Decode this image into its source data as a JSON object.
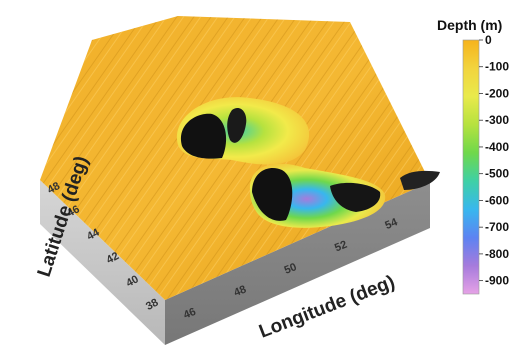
{
  "chart_data": {
    "type": "heatmap",
    "subtype": "3d-surface",
    "title": "",
    "xlabel": "Longitude (deg)",
    "ylabel": "Latitude (deg)",
    "x_ticks": [
      "46",
      "48",
      "50",
      "52",
      "54"
    ],
    "y_ticks": [
      "38",
      "40",
      "42",
      "44",
      "46",
      "48"
    ],
    "xlim": [
      45,
      55
    ],
    "ylim": [
      37,
      49
    ],
    "colorbar": {
      "title": "Depth (m)",
      "ticks": [
        "0",
        "-100",
        "-200",
        "-300",
        "-400",
        "-500",
        "-600",
        "-700",
        "-800",
        "-900"
      ],
      "range": [
        0,
        -950
      ],
      "colors": [
        "#f6b31c",
        "#f2d43e",
        "#e9ea4c",
        "#b6e23f",
        "#6fd84b",
        "#3fd0a6",
        "#38b7ee",
        "#5d83f2",
        "#a67bdc",
        "#e6a2e6"
      ]
    },
    "basins": [
      {
        "name": "",
        "center_lon": 49.5,
        "center_lat": 45.5,
        "max_depth": -800
      },
      {
        "name": "",
        "center_lon": 51.0,
        "center_lat": 42.5,
        "max_depth": -950
      }
    ],
    "legend_position": "right"
  }
}
